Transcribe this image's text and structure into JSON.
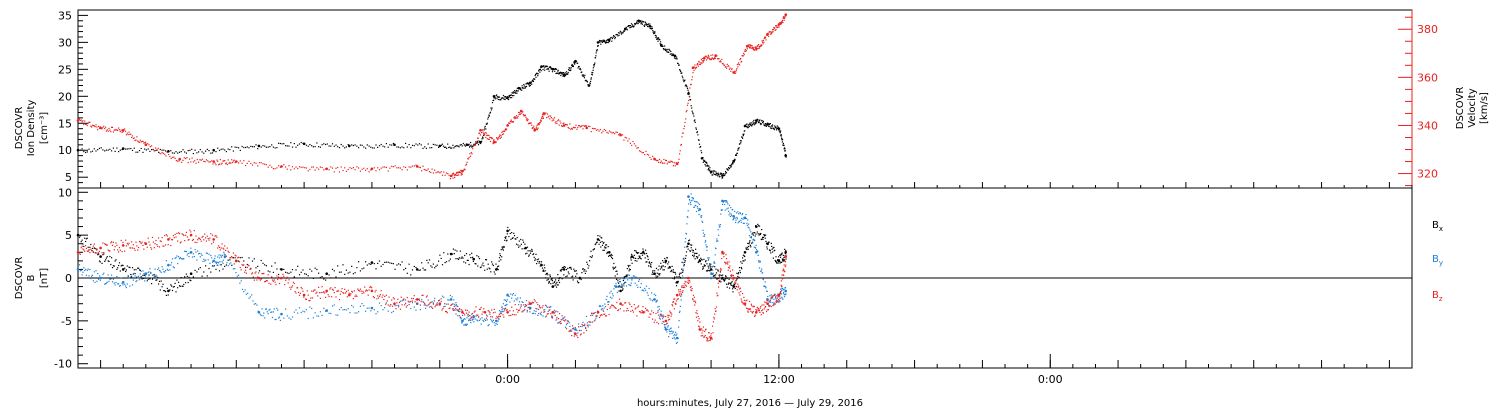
{
  "colors": {
    "black": "#000000",
    "red": "#e8201e",
    "blue": "#1c7fd8",
    "axis": "#000000"
  },
  "chart_data": [
    {
      "type": "scatter",
      "panel": "top",
      "ylabel_left": [
        "DSCOVR",
        "Ion Density",
        "[cm⁻³]"
      ],
      "ylabel_right": [
        "DSCOVR",
        "Velocity",
        "[km/s]"
      ],
      "xlim_hours": [
        -19,
        40
      ],
      "ylim_left": [
        3,
        36
      ],
      "ylim_right": [
        314,
        388
      ],
      "yticks_left": [
        5,
        10,
        15,
        20,
        25,
        30,
        35
      ],
      "yticks_right": [
        320,
        340,
        360,
        380
      ],
      "series": [
        {
          "axis": "left",
          "color": "black",
          "x": [
            -19,
            -17,
            -15,
            -13,
            -11,
            -9,
            -7,
            -5,
            -3,
            -1.8,
            -1.2,
            -0.6,
            0,
            0.5,
            1,
            1.5,
            2,
            2.5,
            3,
            3.6,
            4,
            4.5,
            5.2,
            5.8,
            6.3,
            6.8,
            7.4,
            8,
            8.6,
            9,
            9.5,
            10,
            10.5,
            11,
            11.5,
            12,
            12.3
          ],
          "y": [
            10,
            10.3,
            9.8,
            10,
            10.8,
            11.2,
            10.8,
            11,
            10.8,
            11,
            11.5,
            20,
            19.8,
            21.5,
            22.5,
            25.5,
            25,
            24,
            26.5,
            22,
            30,
            30.5,
            32.5,
            34,
            33,
            29.5,
            27.5,
            20.5,
            8.5,
            6,
            5.3,
            8,
            14.5,
            15.5,
            14.8,
            14,
            9
          ]
        },
        {
          "axis": "right",
          "color": "red",
          "x": [
            -19,
            -18,
            -17,
            -16,
            -14.5,
            -13,
            -12,
            -10,
            -8,
            -6,
            -4,
            -2.5,
            -2,
            -1.2,
            -0.6,
            0,
            0.6,
            1.2,
            1.6,
            2.5,
            3.5,
            5,
            6.5,
            7.5,
            8.2,
            8.7,
            9.2,
            10,
            10.6,
            11,
            11.5,
            12,
            12.3
          ],
          "y": [
            342,
            339,
            338,
            332,
            326,
            325,
            325,
            323,
            322,
            322,
            323,
            319,
            321,
            338,
            333,
            340,
            346,
            338,
            345,
            340,
            339,
            336,
            326,
            324,
            364,
            368,
            369,
            362,
            373,
            372,
            378,
            382,
            386
          ]
        }
      ]
    },
    {
      "type": "scatter",
      "panel": "bottom",
      "ylabel_left": [
        "DSCOVR",
        "B",
        "[nT]"
      ],
      "xlim_hours": [
        -19,
        40
      ],
      "ylim": [
        -10.5,
        10.5
      ],
      "yticks": [
        -10,
        -5,
        0,
        5,
        10
      ],
      "xticks": [
        0,
        12,
        24
      ],
      "xtick_labels": [
        "0:00",
        "12:00",
        "0:00"
      ],
      "xlabel": "hours:minutes, July 27, 2016 — July 29, 2016",
      "legend": [
        {
          "label": "B",
          "sub": "x",
          "color": "black"
        },
        {
          "label": "B",
          "sub": "y",
          "color": "blue"
        },
        {
          "label": "B",
          "sub": "z",
          "color": "red"
        }
      ],
      "series": [
        {
          "name": "Bx",
          "color": "black",
          "x": [
            -19,
            -18,
            -17,
            -16,
            -15,
            -14,
            -12,
            -10,
            -8,
            -6,
            -4,
            -2.5,
            -1.5,
            -0.5,
            0,
            0.8,
            1.5,
            2,
            2.5,
            3.2,
            4,
            4.5,
            5,
            5.5,
            6,
            6.5,
            7,
            7.5,
            8,
            8.5,
            9,
            9.5,
            10,
            10.5,
            11,
            11.5,
            12,
            12.3
          ],
          "y": [
            5,
            2.5,
            1,
            0.5,
            -1.5,
            0.5,
            2,
            1,
            0.5,
            1.8,
            1,
            2.8,
            2.2,
            1,
            5.5,
            3.5,
            1.5,
            -1,
            1,
            0,
            4.5,
            3,
            -1.5,
            2.5,
            3,
            0.5,
            2,
            -0.5,
            4,
            2,
            1,
            0,
            -1,
            3,
            6,
            4,
            2,
            3
          ]
        },
        {
          "name": "By",
          "color": "blue",
          "x": [
            -19,
            -18,
            -17,
            -16,
            -15,
            -14,
            -13,
            -12.5,
            -11,
            -10,
            -8,
            -6,
            -4,
            -2.5,
            -2,
            -1.5,
            -0.5,
            0,
            1,
            2,
            3,
            4,
            4.8,
            5.5,
            6.5,
            7,
            7.5,
            8,
            8.5,
            9,
            9.5,
            10,
            10.5,
            11,
            11.5,
            12,
            12.3
          ],
          "y": [
            1,
            0,
            -0.5,
            0.5,
            1.5,
            3,
            2,
            2.5,
            -4,
            -4.2,
            -3.8,
            -3.5,
            -3,
            -2.5,
            -5,
            -4.5,
            -5,
            -2,
            -3.5,
            -4,
            -6,
            -4,
            -1,
            0,
            -2.5,
            -6,
            -7,
            9.5,
            8,
            0,
            9,
            7.2,
            7,
            3,
            -2.5,
            -2,
            -1.5
          ]
        },
        {
          "name": "Bz",
          "color": "red",
          "x": [
            -19,
            -18,
            -17,
            -16,
            -15,
            -14,
            -13,
            -12,
            -11,
            -10,
            -9,
            -8,
            -7,
            -6,
            -5,
            -4,
            -3,
            -2,
            -1,
            0,
            1,
            2,
            3,
            4,
            5,
            6,
            7,
            7.5,
            8,
            8.5,
            9,
            9.5,
            10,
            10.5,
            11,
            11.5,
            12,
            12.3
          ],
          "y": [
            3,
            3.5,
            3.8,
            4,
            4.5,
            5,
            4.5,
            2,
            0,
            0,
            -2,
            -1.5,
            -2,
            -1.5,
            -3,
            -2.5,
            -3,
            -4,
            -4,
            -4,
            -3,
            -4,
            -6.5,
            -4,
            -3,
            -4,
            -5,
            -2,
            0,
            -6,
            -7,
            3,
            0,
            -3,
            -4,
            -3,
            -2,
            2.5
          ]
        }
      ]
    }
  ]
}
